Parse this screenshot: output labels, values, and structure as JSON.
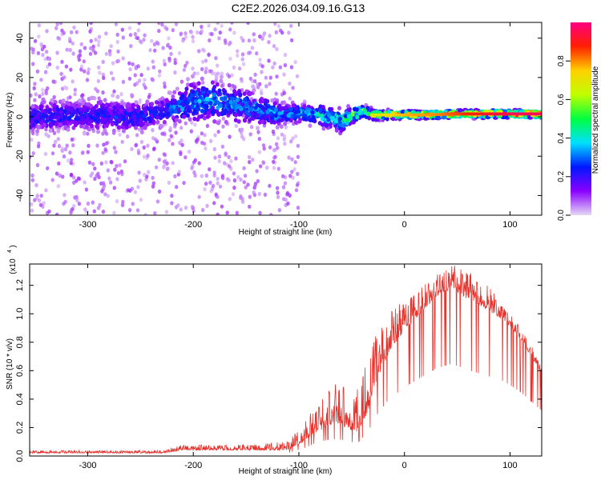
{
  "figure": {
    "title": "C2E2.2026.034.09.16.G13"
  },
  "chart_data": [
    {
      "type": "heatmap",
      "name": "spectrogram",
      "xlabel": "Height of straight line (km)",
      "ylabel": "Frequency (Hz)",
      "xlim": [
        -355,
        130
      ],
      "ylim": [
        -50,
        48
      ],
      "x_ticks": [
        -300,
        -200,
        -100,
        0,
        100
      ],
      "y_ticks": [
        -40,
        -20,
        0,
        20,
        40
      ],
      "colorbar": {
        "label": "Normalized spectral amplitude",
        "range": [
          0,
          1
        ],
        "ticks": [
          0.0,
          0.2,
          0.4,
          0.6,
          0.8
        ],
        "tick_labels": [
          "0.0",
          "0.2",
          "0.4",
          "0.6",
          "0.8"
        ],
        "colormap": [
          "#e6d8f5",
          "#8a00ff",
          "#0018ff",
          "#00e0ff",
          "#00ff40",
          "#c0ff00",
          "#ffd000",
          "#ff2000",
          "#ff0080"
        ]
      },
      "centerline": [
        [
          -355,
          0
        ],
        [
          -300,
          1
        ],
        [
          -250,
          0
        ],
        [
          -220,
          4
        ],
        [
          -200,
          8
        ],
        [
          -180,
          8
        ],
        [
          -160,
          6
        ],
        [
          -140,
          4
        ],
        [
          -120,
          1
        ],
        [
          -100,
          2
        ],
        [
          -80,
          1
        ],
        [
          -60,
          -2
        ],
        [
          -40,
          3
        ],
        [
          -30,
          1
        ],
        [
          -20,
          1
        ],
        [
          0,
          1
        ],
        [
          20,
          1
        ],
        [
          50,
          1.5
        ],
        [
          80,
          1.5
        ],
        [
          100,
          1.5
        ],
        [
          130,
          1.5
        ]
      ],
      "spread": [
        [
          -355,
          5
        ],
        [
          -220,
          5
        ],
        [
          -200,
          7
        ],
        [
          -150,
          6
        ],
        [
          -120,
          4
        ],
        [
          -100,
          3
        ],
        [
          -60,
          4
        ],
        [
          -40,
          2
        ],
        [
          -20,
          1.5
        ],
        [
          0,
          1.2
        ],
        [
          130,
          1.2
        ]
      ],
      "amplitude": [
        [
          -355,
          0.25
        ],
        [
          -300,
          0.25
        ],
        [
          -230,
          0.25
        ],
        [
          -210,
          0.35
        ],
        [
          -180,
          0.35
        ],
        [
          -150,
          0.32
        ],
        [
          -120,
          0.35
        ],
        [
          -100,
          0.38
        ],
        [
          -80,
          0.42
        ],
        [
          -60,
          0.45
        ],
        [
          -40,
          0.6
        ],
        [
          -20,
          0.7
        ],
        [
          0,
          0.75
        ],
        [
          30,
          0.78
        ],
        [
          60,
          0.85
        ],
        [
          90,
          0.92
        ],
        [
          130,
          0.95
        ]
      ],
      "noise_extent_x": [
        -355,
        -100
      ]
    },
    {
      "type": "line",
      "name": "snr",
      "xlabel": "Height of straight line (km)",
      "ylabel": "SNR (10 * v/v)",
      "scale_label": "(x10",
      "scale_exponent": "4",
      "xlim": [
        -355,
        130
      ],
      "ylim": [
        0,
        1.35
      ],
      "x_ticks": [
        -300,
        -200,
        -100,
        0,
        100
      ],
      "y_ticks": [
        0.0,
        0.2,
        0.4,
        0.6,
        0.8,
        1.0,
        1.2
      ],
      "y_tick_labels": [
        "0.0",
        "0.2",
        "0.4",
        "0.6",
        "0.8",
        "1.0",
        "1.2"
      ],
      "color": "#e8322c",
      "envelope_base": [
        [
          -355,
          0.02
        ],
        [
          -230,
          0.02
        ],
        [
          -210,
          0.04
        ],
        [
          -150,
          0.04
        ],
        [
          -110,
          0.04
        ],
        [
          -95,
          0.1
        ],
        [
          -85,
          0.16
        ],
        [
          -70,
          0.22
        ],
        [
          -55,
          0.2
        ],
        [
          -45,
          0.16
        ],
        [
          -35,
          0.3
        ],
        [
          -25,
          0.55
        ],
        [
          -15,
          0.72
        ],
        [
          0,
          0.88
        ],
        [
          15,
          1.0
        ],
        [
          30,
          1.12
        ],
        [
          45,
          1.18
        ],
        [
          60,
          1.1
        ],
        [
          80,
          1.02
        ],
        [
          95,
          0.95
        ],
        [
          110,
          0.82
        ],
        [
          120,
          0.7
        ],
        [
          130,
          0.58
        ]
      ],
      "envelope_peak": [
        [
          -355,
          0.04
        ],
        [
          -230,
          0.04
        ],
        [
          -210,
          0.08
        ],
        [
          -150,
          0.08
        ],
        [
          -110,
          0.1
        ],
        [
          -95,
          0.25
        ],
        [
          -85,
          0.35
        ],
        [
          -70,
          0.5
        ],
        [
          -55,
          0.52
        ],
        [
          -45,
          0.48
        ],
        [
          -35,
          0.7
        ],
        [
          -25,
          0.9
        ],
        [
          -15,
          1.0
        ],
        [
          0,
          1.1
        ],
        [
          15,
          1.18
        ],
        [
          30,
          1.28
        ],
        [
          45,
          1.35
        ],
        [
          60,
          1.3
        ],
        [
          80,
          1.2
        ],
        [
          95,
          1.05
        ],
        [
          110,
          0.9
        ],
        [
          120,
          0.78
        ],
        [
          130,
          0.62
        ]
      ]
    }
  ]
}
